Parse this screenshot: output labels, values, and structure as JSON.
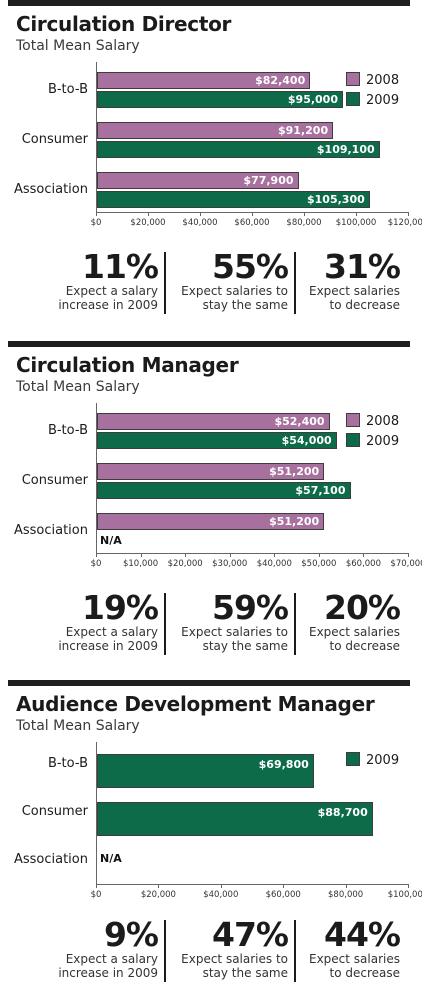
{
  "colors": {
    "s2008": "#a8709e",
    "s2009": "#0d6b4a",
    "bar_border": "#3d3d3d",
    "text": "#1b1b1b"
  },
  "legend": {
    "s2008": "2008",
    "s2009": "2009"
  },
  "chart_data": [
    {
      "type": "bar",
      "orientation": "horizontal",
      "title": "Circulation Director",
      "subtitle": "Total Mean Salary",
      "categories": [
        "B-to-B",
        "Consumer",
        "Association"
      ],
      "series": [
        {
          "name": "2008",
          "values": [
            82400,
            91200,
            77900
          ],
          "labels": [
            "$82,400",
            "$91,200",
            "$77,900"
          ]
        },
        {
          "name": "2009",
          "values": [
            95000,
            109100,
            105300
          ],
          "labels": [
            "$95,000",
            "$109,100",
            "$105,300"
          ]
        }
      ],
      "xlim": [
        0,
        120000
      ],
      "xticks": [
        0,
        20000,
        40000,
        60000,
        80000,
        100000,
        120000
      ],
      "xtick_labels": [
        "$0",
        "$20,000",
        "$40,000",
        "$60,000",
        "$80,000",
        "$100,000",
        "$120,000"
      ],
      "legend_position": "top-right",
      "grid": false,
      "stats": [
        {
          "value": "11%",
          "line1": "Expect a salary",
          "line2": "increase in 2009"
        },
        {
          "value": "55%",
          "line1": "Expect salaries to",
          "line2": "stay the same"
        },
        {
          "value": "31%",
          "line1": "Expect salaries",
          "line2": "to decrease"
        }
      ]
    },
    {
      "type": "bar",
      "orientation": "horizontal",
      "title": "Circulation Manager",
      "subtitle": "Total Mean Salary",
      "categories": [
        "B-to-B",
        "Consumer",
        "Association"
      ],
      "series": [
        {
          "name": "2008",
          "values": [
            52400,
            51200,
            51200
          ],
          "labels": [
            "$52,400",
            "$51,200",
            "$51,200"
          ]
        },
        {
          "name": "2009",
          "values": [
            54000,
            57100,
            null
          ],
          "labels": [
            "$54,000",
            "$57,100",
            "N/A"
          ]
        }
      ],
      "xlim": [
        0,
        70000
      ],
      "xticks": [
        0,
        10000,
        20000,
        30000,
        40000,
        50000,
        60000,
        70000
      ],
      "xtick_labels": [
        "$0",
        "$10,000",
        "$20,000",
        "$30,000",
        "$40,000",
        "$50,000",
        "$60,000",
        "$70,000"
      ],
      "legend_position": "top-right",
      "grid": false,
      "stats": [
        {
          "value": "19%",
          "line1": "Expect a salary",
          "line2": "increase in 2009"
        },
        {
          "value": "59%",
          "line1": "Expect salaries to",
          "line2": "stay the same"
        },
        {
          "value": "20%",
          "line1": "Expect salaries",
          "line2": "to decrease"
        }
      ]
    },
    {
      "type": "bar",
      "orientation": "horizontal",
      "title": "Audience Development Manager",
      "subtitle": "Total Mean Salary",
      "categories": [
        "B-to-B",
        "Consumer",
        "Association"
      ],
      "series": [
        {
          "name": "2009",
          "values": [
            69800,
            88700,
            null
          ],
          "labels": [
            "$69,800",
            "$88,700",
            "N/A"
          ]
        }
      ],
      "xlim": [
        0,
        100000
      ],
      "xticks": [
        0,
        20000,
        40000,
        60000,
        80000,
        100000
      ],
      "xtick_labels": [
        "$0",
        "$20,000",
        "$40,000",
        "$60,000",
        "$80,000",
        "$100,000"
      ],
      "legend_position": "top-right",
      "grid": false,
      "stats": [
        {
          "value": "9%",
          "line1": "Expect a salary",
          "line2": "increase in 2009"
        },
        {
          "value": "47%",
          "line1": "Expect salaries to",
          "line2": "stay the same"
        },
        {
          "value": "44%",
          "line1": "Expect salaries",
          "line2": "to decrease"
        }
      ]
    }
  ]
}
